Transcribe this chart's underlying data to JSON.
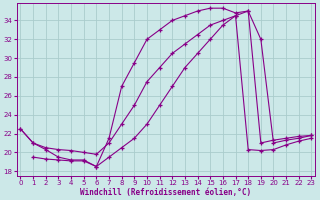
{
  "xlabel": "Windchill (Refroidissement éolien,°C)",
  "bg_color": "#cce8e8",
  "grid_color": "#aacccc",
  "line_color": "#880088",
  "xlim": [
    -0.3,
    23.3
  ],
  "ylim": [
    17.5,
    35.8
  ],
  "yticks": [
    18,
    20,
    22,
    24,
    26,
    28,
    30,
    32,
    34
  ],
  "xticks": [
    0,
    1,
    2,
    3,
    4,
    5,
    6,
    7,
    8,
    9,
    10,
    11,
    12,
    13,
    14,
    15,
    16,
    17,
    18,
    19,
    20,
    21,
    22,
    23
  ],
  "curve1": {
    "x": [
      0,
      1,
      2,
      3,
      4,
      5,
      6,
      7,
      8,
      9,
      10,
      11,
      12,
      13,
      14,
      15,
      16,
      17,
      18,
      19,
      20,
      21,
      22,
      23
    ],
    "y": [
      22.5,
      21.0,
      20.3,
      19.5,
      19.2,
      19.2,
      18.5,
      21.5,
      27.0,
      29.5,
      32.0,
      33.0,
      34.0,
      34.5,
      35.0,
      35.3,
      35.3,
      34.8,
      35.0,
      21.0,
      21.3,
      21.5,
      21.7,
      21.8
    ]
  },
  "curve2": {
    "x": [
      0,
      1,
      2,
      3,
      4,
      5,
      6,
      7,
      8,
      9,
      10,
      11,
      12,
      13,
      14,
      15,
      16,
      17,
      18,
      19,
      20,
      21,
      22,
      23
    ],
    "y": [
      22.5,
      21.0,
      20.5,
      20.3,
      20.2,
      20.0,
      19.8,
      21.0,
      23.0,
      25.0,
      27.5,
      29.0,
      30.5,
      31.5,
      32.5,
      33.5,
      34.0,
      34.5,
      35.0,
      32.0,
      21.0,
      21.3,
      21.5,
      21.8
    ]
  },
  "curve3": {
    "x": [
      1,
      2,
      3,
      4,
      5,
      6,
      7,
      8,
      9,
      10,
      11,
      12,
      13,
      14,
      15,
      16,
      17,
      18,
      19,
      20,
      21,
      22,
      23
    ],
    "y": [
      19.5,
      19.3,
      19.2,
      19.1,
      19.1,
      18.5,
      19.5,
      20.5,
      21.5,
      23.0,
      25.0,
      27.0,
      29.0,
      30.5,
      32.0,
      33.5,
      34.5,
      20.3,
      20.2,
      20.3,
      20.8,
      21.2,
      21.5
    ]
  }
}
